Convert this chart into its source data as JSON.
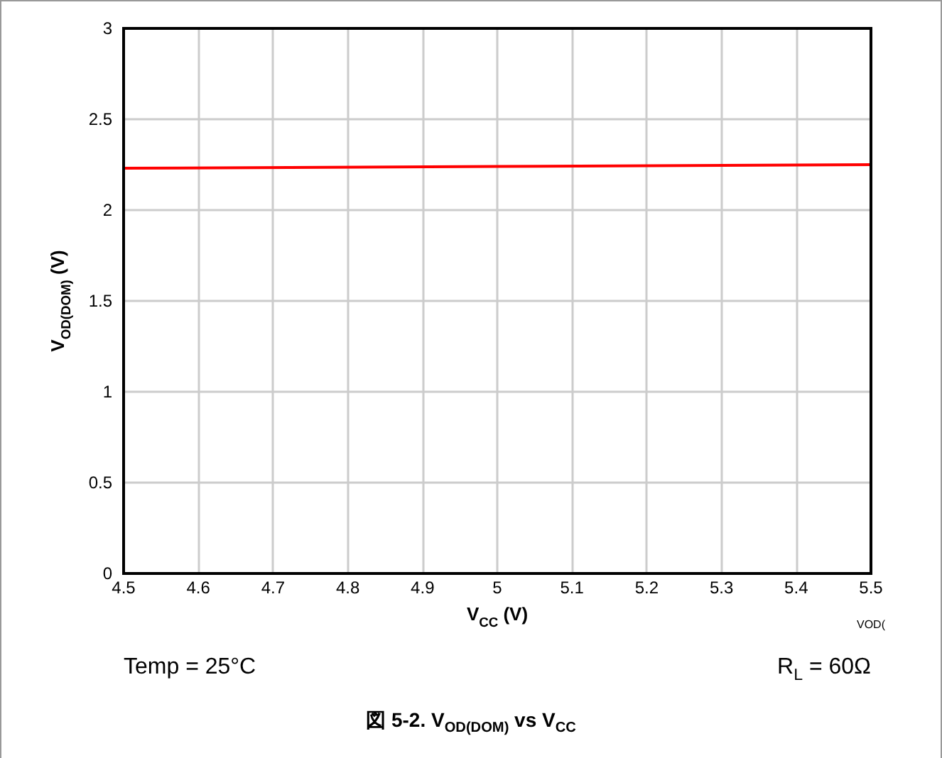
{
  "chart_data": {
    "type": "line",
    "title": "図 5-2. V$_{OD(DOM)}$ vs V$_{CC}$",
    "xlabel": "V$_{CC}$ (V)",
    "ylabel": "V$_{OD(DOM)}$ (V)",
    "x": [
      4.5,
      5.0,
      5.5
    ],
    "series": [
      {
        "color": "#ff0000",
        "values": [
          2.23,
          2.24,
          2.25
        ]
      }
    ],
    "xlim": [
      4.5,
      5.5
    ],
    "xticks": [
      4.5,
      4.6,
      4.7,
      4.8,
      4.9,
      5,
      5.1,
      5.2,
      5.3,
      5.4,
      5.5
    ],
    "ylim": [
      0,
      3
    ],
    "yticks": [
      0,
      0.5,
      1,
      1.5,
      2,
      2.5,
      3
    ],
    "grid": true,
    "marker": "none",
    "line_style": "solid",
    "annotations": [
      "VOD(",
      "Temp = 25°C",
      "R$_{L}$ = 60Ω"
    ]
  }
}
